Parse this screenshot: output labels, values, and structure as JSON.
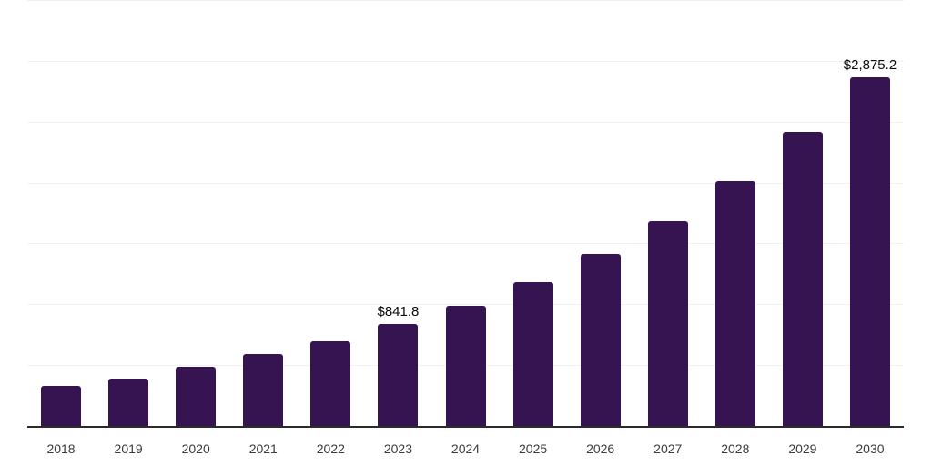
{
  "chart_data": {
    "type": "bar",
    "title": "",
    "xlabel": "",
    "ylabel": "",
    "categories": [
      "2018",
      "2019",
      "2020",
      "2021",
      "2022",
      "2023",
      "2024",
      "2025",
      "2026",
      "2027",
      "2028",
      "2029",
      "2030"
    ],
    "values": [
      340,
      400,
      490,
      600,
      705,
      841.8,
      995,
      1190,
      1420,
      1690,
      2020,
      2420,
      2875.2
    ],
    "annotations": [
      {
        "index": 5,
        "text": "$841.8"
      },
      {
        "index": 12,
        "text": "$2,875.2"
      }
    ],
    "ylim": [
      0,
      3500
    ],
    "gridline_step": 500,
    "grid": "horizontal-only",
    "y_tick_labels_visible": false,
    "legend": "none",
    "colors": {
      "bar": "#361452",
      "axis_line": "#2b2b2b",
      "gridline": "#f1f1f1",
      "x_tick_label": "#3b3b3b",
      "value_label": "#0a0a0a",
      "background": "#ffffff"
    }
  }
}
